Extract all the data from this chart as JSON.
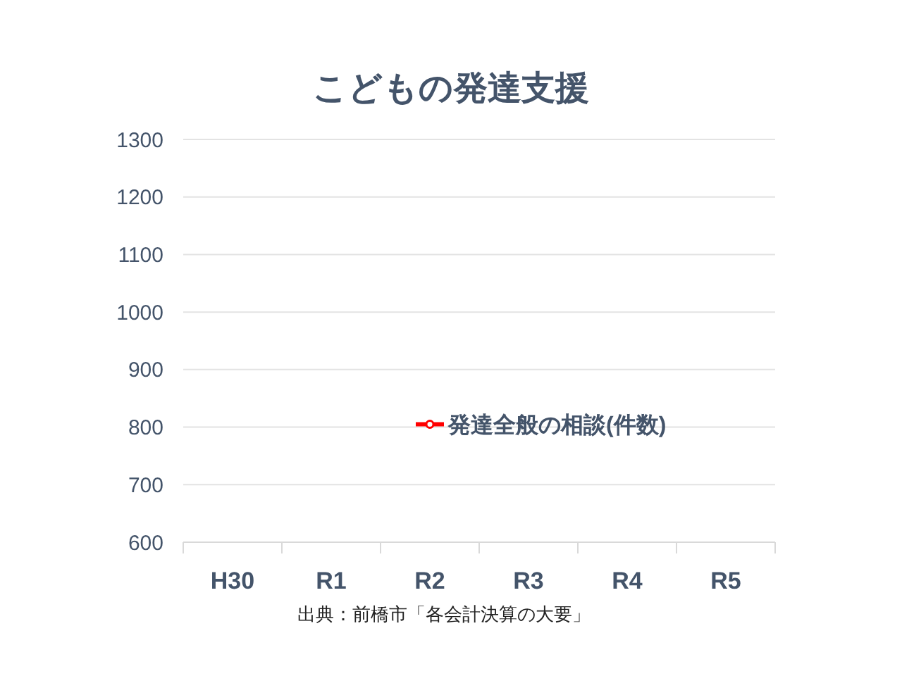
{
  "chart_data": {
    "type": "line",
    "title": "こどもの発達支援",
    "categories": [
      "H30",
      "R1",
      "R2",
      "R3",
      "R4",
      "R5"
    ],
    "series": [
      {
        "name": "発達全般の相談(件数)",
        "color": "#ff0000",
        "values": [
          null,
          null,
          805,
          null,
          null,
          null
        ]
      }
    ],
    "ylim": [
      600,
      1300
    ],
    "yticks": [
      600,
      700,
      800,
      900,
      1000,
      1100,
      1200,
      1300
    ],
    "grid": "y",
    "marker": "circle",
    "annotations": [
      "出典：前橋市「各会計決算の大要」"
    ]
  }
}
